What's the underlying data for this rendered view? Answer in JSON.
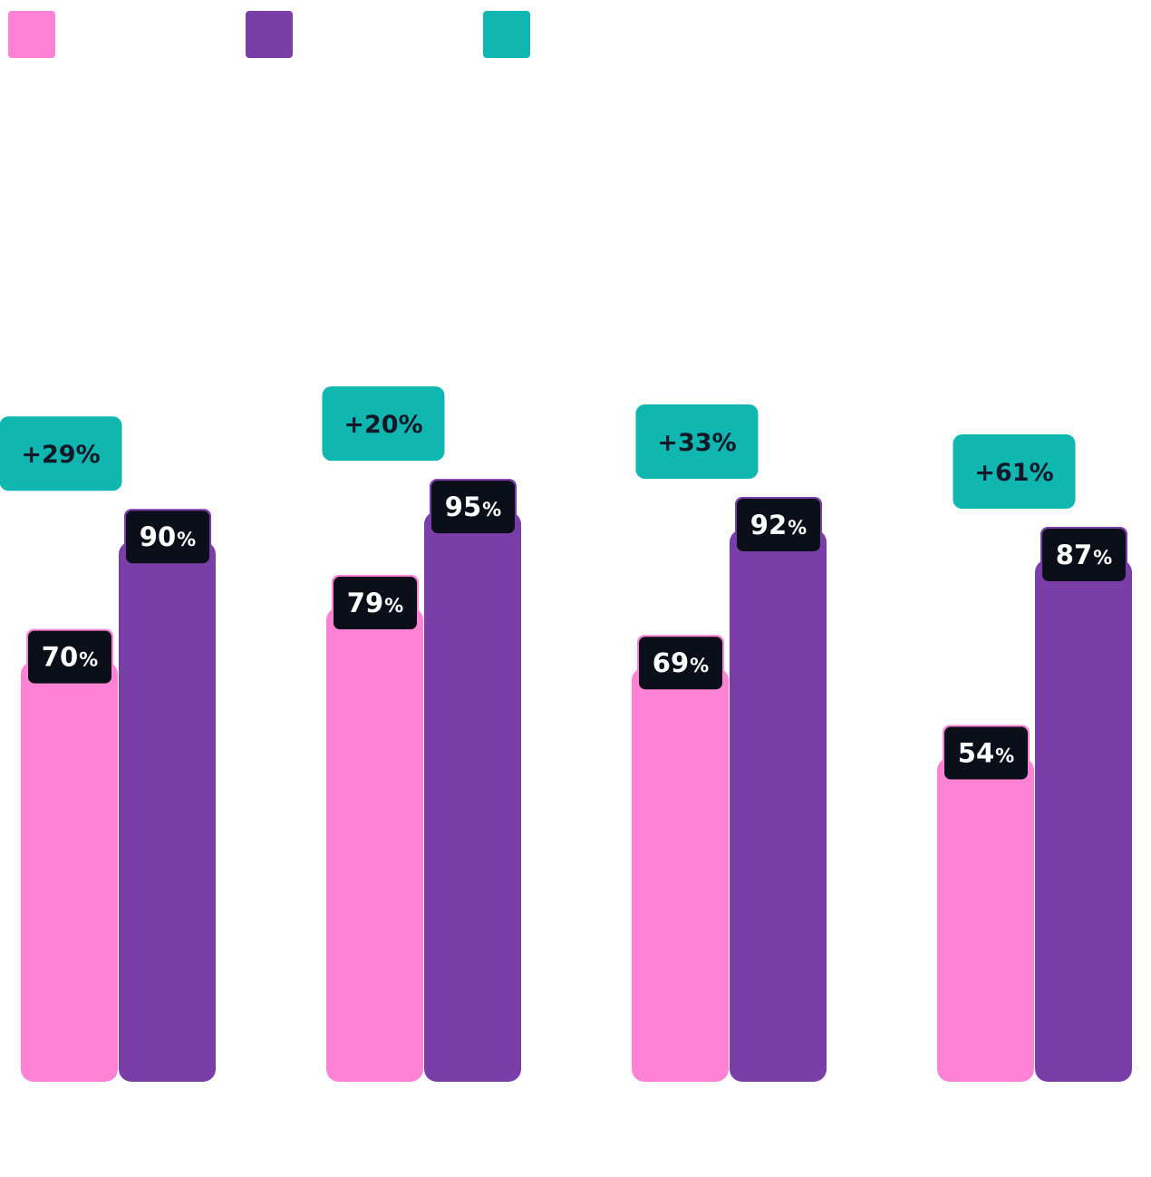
{
  "chart_data": {
    "type": "bar",
    "title": "",
    "xlabel": "",
    "ylabel": "",
    "ylim": [
      0,
      100
    ],
    "grid": false,
    "legend_position": "top-left",
    "categories": [
      "",
      "",
      "",
      ""
    ],
    "series": [
      {
        "name": "",
        "color": "#FF82D4",
        "values": [
          70,
          79,
          69,
          54
        ]
      },
      {
        "name": "",
        "color": "#7A3EA8",
        "values": [
          90,
          95,
          92,
          87
        ]
      }
    ],
    "deltas": {
      "name": "",
      "color": "#10B7B0",
      "labels": [
        "+29%",
        "+20%",
        "+33%",
        "+61%"
      ]
    },
    "value_suffix": "%",
    "label_box_color": "#0B0F1A",
    "label_text_color": "#FFFFFF",
    "delta_text_color": "#111827"
  }
}
